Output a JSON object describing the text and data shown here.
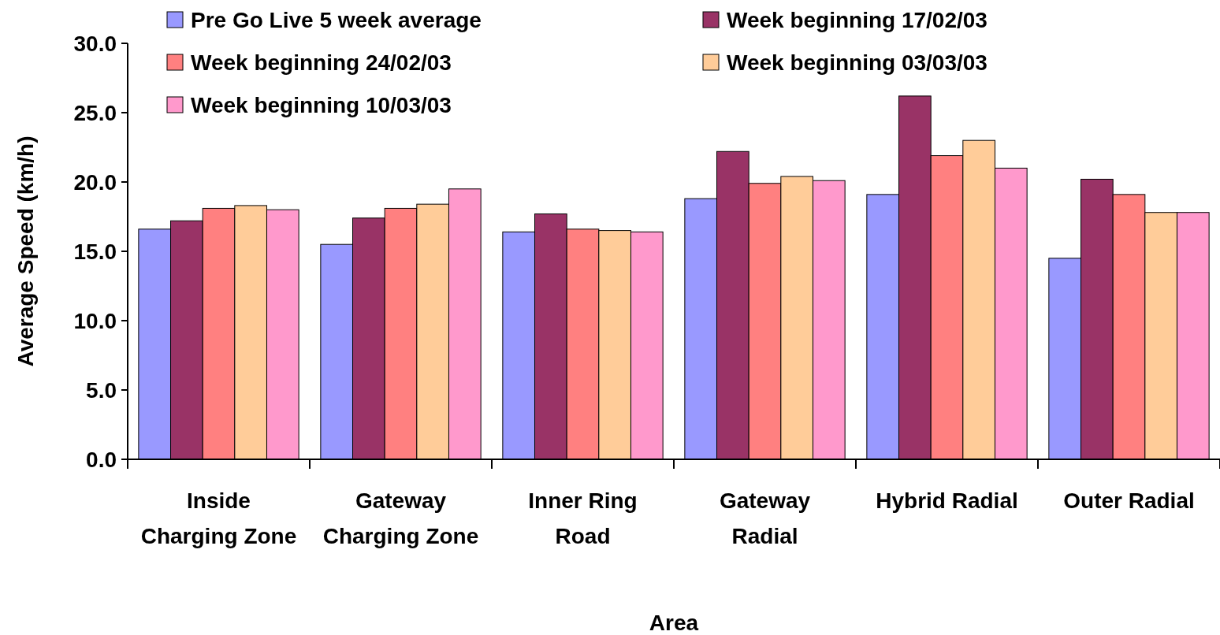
{
  "chart_data": {
    "type": "bar",
    "xlabel": "Area",
    "ylabel": "Average Speed (km/h)",
    "categories": [
      "Inside Charging Zone",
      "Gateway Charging Zone",
      "Inner Ring Road",
      "Gateway Radial",
      "Hybrid Radial",
      "Outer Radial"
    ],
    "series": [
      {
        "name": "Pre Go Live 5 week average",
        "color": "#9999ff",
        "values": [
          16.6,
          15.5,
          16.4,
          18.8,
          19.1,
          14.5
        ]
      },
      {
        "name": "Week beginning 17/02/03",
        "color": "#993366",
        "values": [
          17.2,
          17.4,
          17.7,
          22.2,
          26.2,
          20.2
        ]
      },
      {
        "name": "Week beginning 24/02/03",
        "color": "#ff8080",
        "values": [
          18.1,
          18.1,
          16.6,
          19.9,
          21.9,
          19.1
        ]
      },
      {
        "name": "Week beginning 03/03/03",
        "color": "#ffcc99",
        "values": [
          18.3,
          18.4,
          16.5,
          20.4,
          23.0,
          17.8
        ]
      },
      {
        "name": "Week beginning 10/03/03",
        "color": "#ff99cc",
        "values": [
          18.0,
          19.5,
          16.4,
          20.1,
          21.0,
          17.8
        ]
      }
    ],
    "ylim": [
      0,
      30
    ],
    "yticks": [
      {
        "value": 0,
        "label": "0.0"
      },
      {
        "value": 5,
        "label": "5.0"
      },
      {
        "value": 10,
        "label": "10.0"
      },
      {
        "value": 15,
        "label": "15.0"
      },
      {
        "value": 20,
        "label": "20.0"
      },
      {
        "value": 25,
        "label": "25.0"
      },
      {
        "value": 30,
        "label": "30.0"
      }
    ],
    "grid": false,
    "legend": "top left"
  }
}
